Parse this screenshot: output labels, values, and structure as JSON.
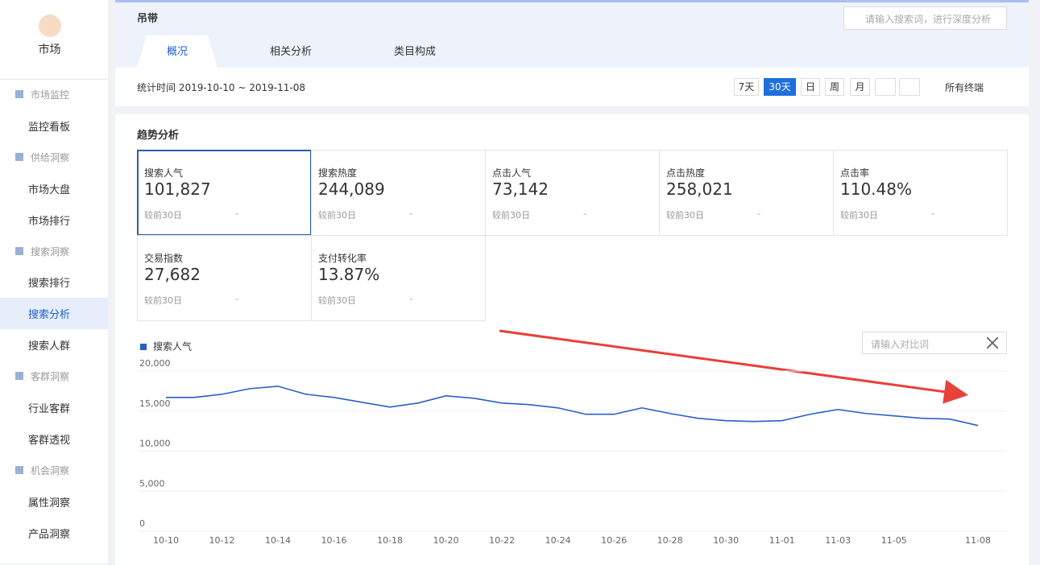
{
  "sidebar": {
    "title": "市场",
    "sections": [
      {
        "heading": "市场监控",
        "items": [
          "监控看板"
        ]
      },
      {
        "heading": "供给洞察",
        "items": [
          "市场大盘",
          "市场排行"
        ]
      },
      {
        "heading": "搜索洞察",
        "items": [
          "搜索排行",
          "搜索分析",
          "搜索人群"
        ]
      },
      {
        "heading": "客群洞察",
        "items": [
          "行业客群",
          "客群透视"
        ]
      },
      {
        "heading": "机会洞察",
        "items": [
          "属性洞察",
          "产品洞察"
        ]
      }
    ]
  },
  "header": {
    "keyword": "吊带",
    "search_placeholder": "请输入搜索词，进行深度分析",
    "tabs": [
      "概况",
      "相关分析",
      "类目构成"
    ],
    "date_range": "统计时间 2019-10-10 ~ 2019-11-08",
    "period_buttons": [
      "7天",
      "30天",
      "日",
      "周",
      "月"
    ],
    "terminal": "所有终端"
  },
  "trend": {
    "title": "趋势分析",
    "compare_placeholder": "请输入对比词",
    "metrics": [
      {
        "label": "搜索人气",
        "value": "101,827",
        "compare": "较前30日",
        "change": "-"
      },
      {
        "label": "搜索热度",
        "value": "244,089",
        "compare": "较前30日",
        "change": "-"
      },
      {
        "label": "点击人气",
        "value": "73,142",
        "compare": "较前30日",
        "change": "-"
      },
      {
        "label": "点击热度",
        "value": "258,021",
        "compare": "较前30日",
        "change": "-"
      },
      {
        "label": "点击率",
        "value": "110.48%",
        "compare": "较前30日",
        "change": "-"
      },
      {
        "label": "交易指数",
        "value": "27,682",
        "compare": "较前30日",
        "change": "-"
      },
      {
        "label": "支付转化率",
        "value": "13.87%",
        "compare": "较前30日",
        "change": "-"
      }
    ]
  },
  "chart_data": {
    "type": "line",
    "categories": [
      "10-10",
      null,
      "10-12",
      null,
      "10-14",
      null,
      "10-16",
      null,
      "10-18",
      null,
      "10-20",
      null,
      "10-22",
      null,
      "10-24",
      null,
      "10-26",
      null,
      "10-28",
      null,
      "10-30",
      null,
      "11-01",
      null,
      "11-03",
      null,
      "11-05",
      null,
      null,
      "11-08"
    ],
    "series": [
      {
        "name": "搜索人气",
        "color": "#2860c8",
        "values": [
          16700,
          16700,
          17100,
          17800,
          18100,
          17100,
          16700,
          16100,
          15500,
          16000,
          16900,
          16600,
          16000,
          15800,
          15400,
          14600,
          14600,
          15400,
          14700,
          14100,
          13800,
          13700,
          13800,
          14600,
          15200,
          14700,
          14400,
          14100,
          14000,
          13200
        ]
      }
    ],
    "ylim": [
      0,
      20000
    ],
    "yticks": [
      0,
      {
        "value": 5000,
        "label": "5,000"
      },
      {
        "value": 10000,
        "label": "10,000"
      },
      {
        "value": 15000,
        "label": "15,000"
      },
      {
        "value": 20000,
        "label": "20,000"
      }
    ],
    "grid": true
  }
}
